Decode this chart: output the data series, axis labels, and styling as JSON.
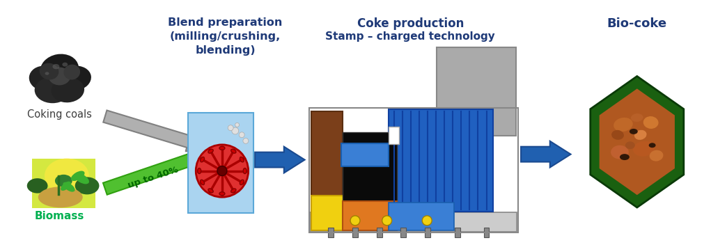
{
  "labels": {
    "coking_coals": "Coking coals",
    "biomass": "Biomass",
    "blend_prep_line1": "Blend preparation",
    "blend_prep_line2": "(milling/crushing,",
    "blend_prep_line3": "blending)",
    "coke_prod_line1": "Coke production",
    "coke_prod_line2": "Stamp – charged technology",
    "bio_coke": "Bio-coke",
    "up_to_40": "up to 40%"
  },
  "colors": {
    "background": "#ffffff",
    "dark_blue_text": "#1f3a78",
    "green_text": "#00b050",
    "gray_arrow_fill": "#b0b0b0",
    "gray_arrow_edge": "#808080",
    "green_arrow_fill": "#50c030",
    "green_arrow_edge": "#30a010",
    "blue_arrow_fill": "#2060b0",
    "blue_arrow_edge": "#1a4a90",
    "coal_dark1": "#111111",
    "coal_dark2": "#222222",
    "coal_mid": "#404040",
    "coal_light": "#666666",
    "coal_hilight": "#888888",
    "mill_bg": "#5ba8d8",
    "mill_bg_light": "#aad4f0",
    "mill_red": "#e03030",
    "mill_red_dark": "#aa0000",
    "mill_white": "#f0f0f0",
    "brown": "#7b3f1a",
    "yellow": "#f0d010",
    "black": "#0a0a0a",
    "orange": "#e07820",
    "blue_machine": "#2060c0",
    "blue_machine_dark": "#1040a0",
    "gray_machine": "#aaaaaa",
    "gray_machine_light": "#cccccc",
    "gray_machine_dark": "#888888",
    "gray_frame": "#bbbbbb",
    "white": "#ffffff",
    "bio_green": "#1a6010",
    "bio_green_dark": "#0a3a08",
    "bio_orange": "#c86020",
    "bio_brown": "#6a3010"
  }
}
